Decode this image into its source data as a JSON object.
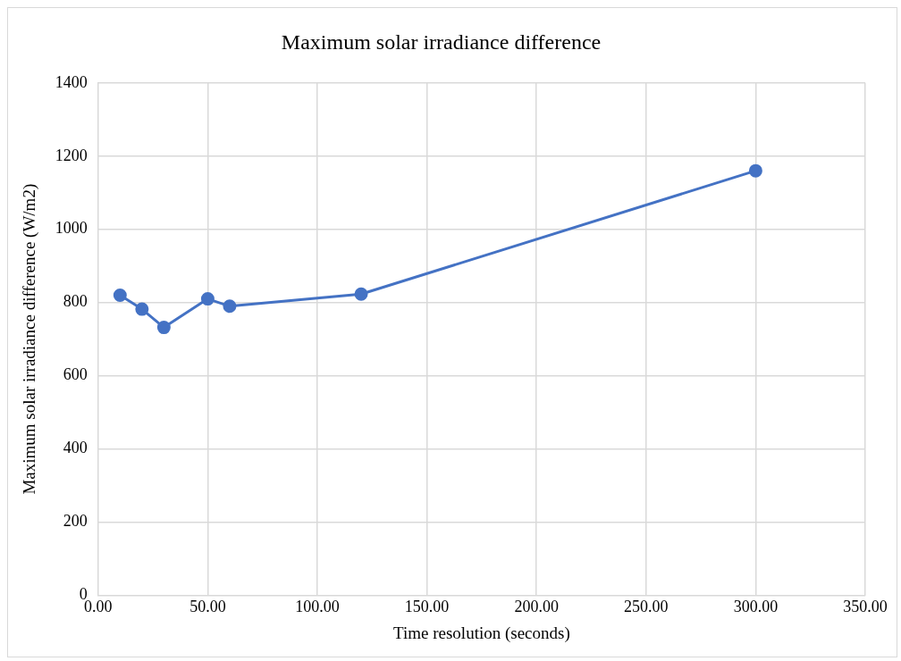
{
  "chart_data": {
    "type": "line",
    "title": "Maximum solar irradiance difference",
    "xlabel": "Time resolution (seconds)",
    "ylabel": "Maximum solar irradiance difference (W/m2)",
    "x": [
      10,
      20,
      30,
      50,
      60,
      120,
      300
    ],
    "series": [
      {
        "color": "#4472c4",
        "values": [
          820,
          782,
          732,
          810,
          790,
          823,
          1160
        ]
      }
    ],
    "xlim": [
      0,
      350
    ],
    "xticks": [
      {
        "value": 0,
        "label": "0.00"
      },
      {
        "value": 50,
        "label": "50.00"
      },
      {
        "value": 100,
        "label": "100.00"
      },
      {
        "value": 150,
        "label": "150.00"
      },
      {
        "value": 200,
        "label": "200.00"
      },
      {
        "value": 250,
        "label": "250.00"
      },
      {
        "value": 300,
        "label": "300.00"
      },
      {
        "value": 350,
        "label": "350.00"
      }
    ],
    "ylim": [
      0,
      1400
    ],
    "yticks": [
      0,
      200,
      400,
      600,
      800,
      1000,
      1200,
      1400
    ],
    "grid": true,
    "marker": "circle",
    "line_style": "solid"
  }
}
